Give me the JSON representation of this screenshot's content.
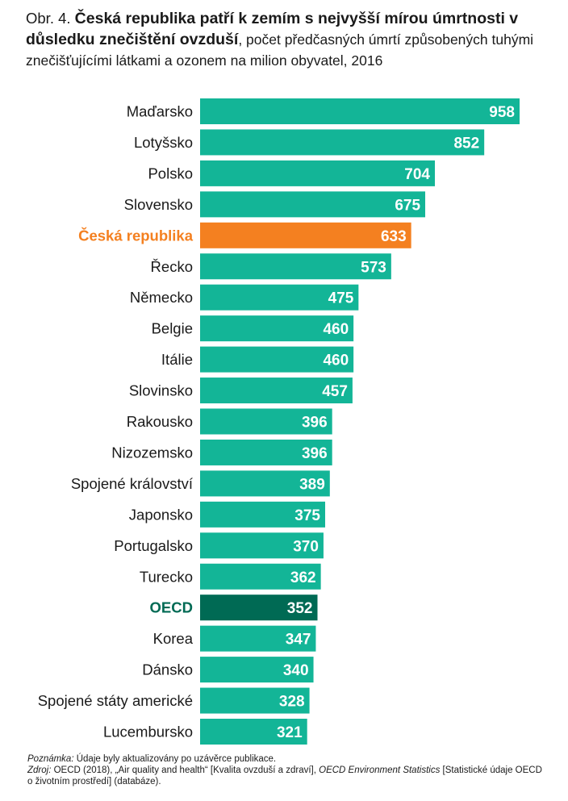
{
  "title": {
    "prefix": "Obr. 4. ",
    "bold": "Česká republika patří k zemím s nejvyšší mírou úmrtnosti v důsledku znečištění ovzduší",
    "rest": ", počet předčasných úmrtí způsobených tuhými znečišťujícími látkami a ozonem na milion obyvatel, 2016"
  },
  "chart_data": {
    "type": "bar",
    "orientation": "horizontal",
    "categories": [
      "Maďarsko",
      "Lotyšsko",
      "Polsko",
      "Slovensko",
      "Česká republika",
      "Řecko",
      "Německo",
      "Belgie",
      "Itálie",
      "Slovinsko",
      "Rakousko",
      "Nizozemsko",
      "Spojené království",
      "Japonsko",
      "Portugalsko",
      "Turecko",
      "OECD",
      "Korea",
      "Dánsko",
      "Spojené státy americké",
      "Lucembursko"
    ],
    "values": [
      958,
      852,
      704,
      675,
      633,
      573,
      475,
      460,
      460,
      457,
      396,
      396,
      389,
      375,
      370,
      362,
      352,
      347,
      340,
      328,
      321
    ],
    "highlight": {
      "Česká republika": "#f48020",
      "OECD": "#006a54"
    },
    "label_highlight": {
      "Česká republika": "#f48020",
      "OECD": "#006a54"
    },
    "bold_categories": [
      "Česká republika",
      "OECD"
    ],
    "bar_color": "#13b597",
    "value_label_color": "#ffffff",
    "xlim": [
      0,
      958
    ],
    "grid": false,
    "legend": "none"
  },
  "notes": {
    "note_label": "Poznámka:",
    "note_text": " Údaje byly aktualizovány po uzávěrce publikace.",
    "source_label": "Zdroj:",
    "source_text_1": " OECD (2018), „Air quality and health“ [Kvalita ovzduší a zdraví], ",
    "source_italic": "OECD Environment Statistics",
    "source_text_2": " [Statistické údaje OECD o životním prostředí] (databáze)."
  }
}
